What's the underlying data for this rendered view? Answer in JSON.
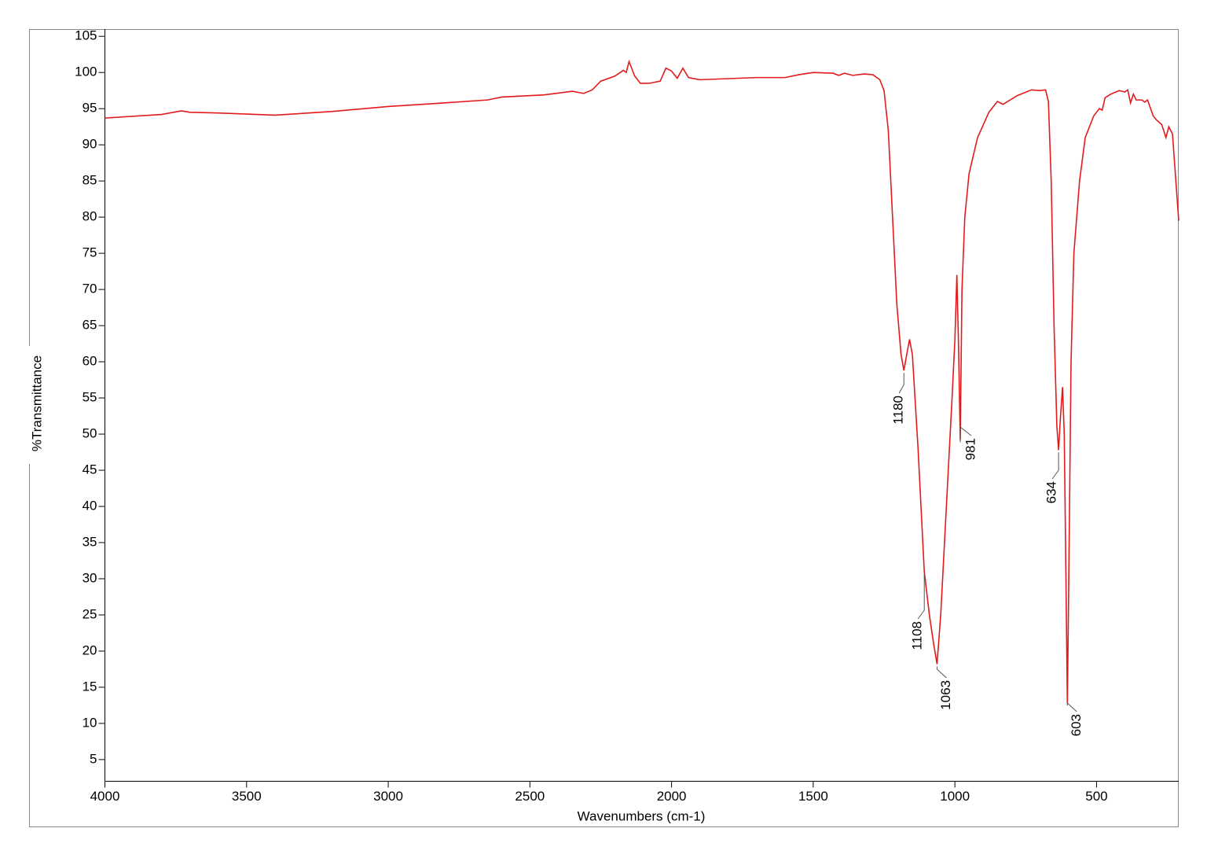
{
  "chart_data": {
    "type": "line",
    "xlabel": "Wavenumbers (cm-1)",
    "ylabel": "%Transmittance",
    "color": "#e31a1c",
    "xlim": [
      4000,
      210
    ],
    "ylim": [
      2,
      106
    ],
    "xticks": [
      4000,
      3500,
      3000,
      2500,
      2000,
      1500,
      1000,
      500
    ],
    "yticks": [
      5,
      10,
      15,
      20,
      25,
      30,
      35,
      40,
      45,
      50,
      55,
      60,
      65,
      70,
      75,
      80,
      85,
      90,
      95,
      100,
      105
    ],
    "x": [
      4000,
      3800,
      3730,
      3700,
      3600,
      3400,
      3200,
      3000,
      2800,
      2650,
      2600,
      2450,
      2350,
      2310,
      2280,
      2250,
      2200,
      2170,
      2160,
      2150,
      2130,
      2110,
      2080,
      2040,
      2020,
      2000,
      1980,
      1960,
      1940,
      1900,
      1700,
      1600,
      1550,
      1500,
      1430,
      1410,
      1390,
      1360,
      1320,
      1290,
      1265,
      1250,
      1235,
      1220,
      1205,
      1190,
      1180,
      1170,
      1160,
      1150,
      1130,
      1108,
      1090,
      1075,
      1063,
      1050,
      1030,
      1010,
      1000,
      993,
      987,
      981,
      975,
      965,
      950,
      920,
      880,
      850,
      830,
      780,
      730,
      700,
      680,
      670,
      660,
      650,
      640,
      634,
      628,
      620,
      614,
      608,
      603,
      598,
      590,
      580,
      560,
      540,
      510,
      490,
      480,
      470,
      450,
      420,
      400,
      390,
      380,
      370,
      360,
      340,
      330,
      320,
      300,
      290,
      270,
      255,
      245,
      232,
      220,
      210
    ],
    "values": [
      93.7,
      94.2,
      94.7,
      94.5,
      94.4,
      94.1,
      94.6,
      95.3,
      95.8,
      96.2,
      96.6,
      96.9,
      97.4,
      97.1,
      97.6,
      98.8,
      99.5,
      100.3,
      100.0,
      101.5,
      99.5,
      98.5,
      98.5,
      98.8,
      100.6,
      100.2,
      99.2,
      100.6,
      99.3,
      99.0,
      99.3,
      99.3,
      99.7,
      100.0,
      99.9,
      99.6,
      99.9,
      99.6,
      99.8,
      99.7,
      99.0,
      97.5,
      92,
      80,
      68,
      61,
      58.8,
      61,
      63.1,
      61,
      48,
      31,
      25,
      21,
      18.2,
      25,
      40,
      55,
      63,
      72,
      62,
      49.2,
      70,
      80,
      86,
      91,
      94.5,
      96,
      95.6,
      96.8,
      97.6,
      97.5,
      97.6,
      96,
      85,
      65,
      51,
      47.8,
      52,
      56.5,
      50,
      30,
      12.8,
      30,
      60,
      75,
      85,
      91,
      94,
      95,
      94.8,
      96.5,
      97,
      97.5,
      97.3,
      97.6,
      95.8,
      97,
      96.2,
      96.2,
      95.9,
      96.2,
      94,
      93.5,
      92.8,
      91,
      92.5,
      91.5,
      85,
      79.5
    ],
    "peak_labels": [
      1180,
      1108,
      1063,
      981,
      634,
      603
    ]
  }
}
